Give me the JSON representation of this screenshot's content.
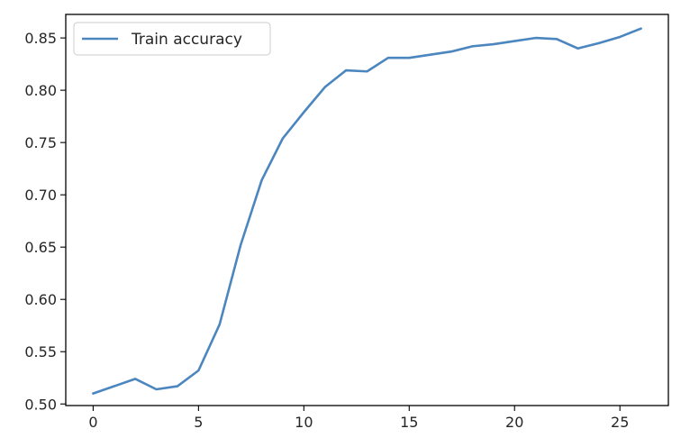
{
  "chart_data": {
    "type": "line",
    "title": "",
    "xlabel": "",
    "ylabel": "",
    "xlim": [
      -1.3,
      27.3
    ],
    "ylim": [
      0.4985,
      0.8725
    ],
    "x_ticks": [
      "0",
      "5",
      "10",
      "15",
      "20",
      "25"
    ],
    "y_ticks": [
      "0.50",
      "0.55",
      "0.60",
      "0.65",
      "0.70",
      "0.75",
      "0.80",
      "0.85"
    ],
    "grid": false,
    "legend_position": "upper-left",
    "series": [
      {
        "name": "Train accuracy",
        "color": "#4c86bf",
        "x": [
          0,
          1,
          2,
          3,
          4,
          5,
          6,
          7,
          8,
          9,
          10,
          11,
          12,
          13,
          14,
          15,
          16,
          17,
          18,
          19,
          20,
          21,
          22,
          23,
          24,
          25,
          26
        ],
        "y": [
          0.51,
          0.517,
          0.524,
          0.514,
          0.517,
          0.532,
          0.576,
          0.652,
          0.714,
          0.754,
          0.779,
          0.803,
          0.819,
          0.818,
          0.831,
          0.831,
          0.834,
          0.837,
          0.842,
          0.844,
          0.847,
          0.85,
          0.849,
          0.84,
          0.845,
          0.851,
          0.859
        ]
      }
    ]
  }
}
